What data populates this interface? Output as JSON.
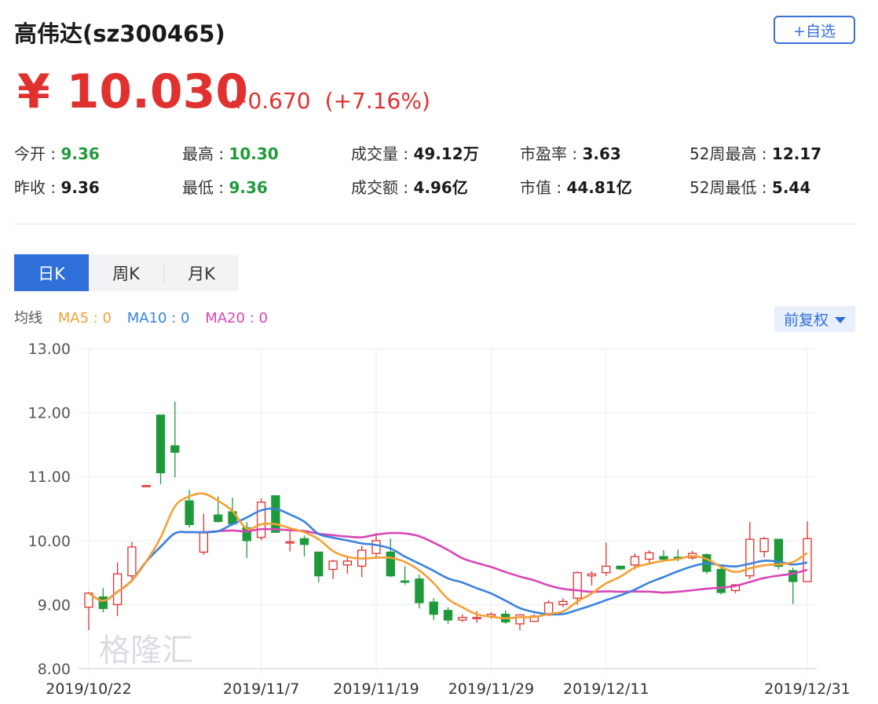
{
  "header": {
    "title": "高伟达(sz300465)",
    "add_label": "+自选",
    "price": "¥ 10.030",
    "change": "+0.670",
    "change_pct": "(+7.16%)"
  },
  "stats": [
    {
      "label": "今开 : ",
      "value": "9.36",
      "color": "green"
    },
    {
      "label": "最高 : ",
      "value": "10.30",
      "color": "green"
    },
    {
      "label": "成交量 : ",
      "value": "49.12万",
      "color": "dark"
    },
    {
      "label": "市盈率 : ",
      "value": "3.63",
      "color": "dark"
    },
    {
      "label": "52周最高 : ",
      "value": "12.17",
      "color": "dark"
    },
    {
      "label": "昨收 : ",
      "value": "9.36",
      "color": "dark"
    },
    {
      "label": "最低 : ",
      "value": "9.36",
      "color": "green"
    },
    {
      "label": "成交额 : ",
      "value": "4.96亿",
      "color": "dark"
    },
    {
      "label": "市值 : ",
      "value": "44.81亿",
      "color": "dark"
    },
    {
      "label": "52周最低 : ",
      "value": "5.44",
      "color": "dark"
    }
  ],
  "tabs": [
    "日K",
    "周K",
    "月K"
  ],
  "ma_legend": {
    "label": "均线",
    "ma5": "MA5 : 0",
    "ma10": "MA10 : 0",
    "ma20": "MA20 : 0"
  },
  "adjust_label": "前复权",
  "watermark": "格隆汇",
  "colors": {
    "up": "#e0312f",
    "down": "#1f9a3a",
    "ma5": "#f5a033",
    "ma10": "#3a82e0",
    "ma20": "#d946b8",
    "accent": "#2f6fd9"
  },
  "chart_data": {
    "type": "candlestick",
    "ylim": [
      8.0,
      13.0
    ],
    "yticks": [
      "13.00",
      "12.00",
      "11.00",
      "10.00",
      "9.00",
      "8.00"
    ],
    "xtick_labels": [
      {
        "index": 0,
        "label": "2019/10/22"
      },
      {
        "index": 12,
        "label": "2019/11/7"
      },
      {
        "index": 20,
        "label": "2019/11/19"
      },
      {
        "index": 28,
        "label": "2019/11/29"
      },
      {
        "index": 36,
        "label": "2019/12/11"
      },
      {
        "index": 50,
        "label": "2019/12/31"
      }
    ],
    "candles": [
      {
        "o": 8.96,
        "h": 9.2,
        "l": 8.6,
        "c": 9.18
      },
      {
        "o": 9.12,
        "h": 9.26,
        "l": 8.88,
        "c": 8.94
      },
      {
        "o": 9.0,
        "h": 9.66,
        "l": 8.82,
        "c": 9.48
      },
      {
        "o": 9.45,
        "h": 9.98,
        "l": 9.4,
        "c": 9.9
      },
      {
        "o": 10.86,
        "h": 10.86,
        "l": 10.86,
        "c": 10.86
      },
      {
        "o": 11.96,
        "h": 11.96,
        "l": 10.88,
        "c": 11.06
      },
      {
        "o": 11.48,
        "h": 12.17,
        "l": 10.99,
        "c": 11.38
      },
      {
        "o": 10.62,
        "h": 10.79,
        "l": 10.2,
        "c": 10.25
      },
      {
        "o": 9.82,
        "h": 10.42,
        "l": 9.78,
        "c": 10.12
      },
      {
        "o": 10.4,
        "h": 10.69,
        "l": 10.28,
        "c": 10.3
      },
      {
        "o": 10.45,
        "h": 10.67,
        "l": 10.23,
        "c": 10.26
      },
      {
        "o": 10.2,
        "h": 10.29,
        "l": 9.73,
        "c": 10.0
      },
      {
        "o": 10.05,
        "h": 10.66,
        "l": 10.01,
        "c": 10.6
      },
      {
        "o": 10.7,
        "h": 10.7,
        "l": 10.13,
        "c": 10.13
      },
      {
        "o": 9.97,
        "h": 10.18,
        "l": 9.83,
        "c": 9.98
      },
      {
        "o": 10.03,
        "h": 10.08,
        "l": 9.75,
        "c": 9.94
      },
      {
        "o": 9.82,
        "h": 9.82,
        "l": 9.35,
        "c": 9.45
      },
      {
        "o": 9.55,
        "h": 9.7,
        "l": 9.4,
        "c": 9.68
      },
      {
        "o": 9.62,
        "h": 9.73,
        "l": 9.48,
        "c": 9.68
      },
      {
        "o": 9.6,
        "h": 9.92,
        "l": 9.43,
        "c": 9.85
      },
      {
        "o": 9.8,
        "h": 10.12,
        "l": 9.74,
        "c": 10.0
      },
      {
        "o": 9.82,
        "h": 10.03,
        "l": 9.43,
        "c": 9.45
      },
      {
        "o": 9.37,
        "h": 9.6,
        "l": 9.31,
        "c": 9.35
      },
      {
        "o": 9.4,
        "h": 9.47,
        "l": 8.94,
        "c": 9.03
      },
      {
        "o": 9.04,
        "h": 9.1,
        "l": 8.76,
        "c": 8.85
      },
      {
        "o": 8.91,
        "h": 8.96,
        "l": 8.7,
        "c": 8.76
      },
      {
        "o": 8.76,
        "h": 8.85,
        "l": 8.73,
        "c": 8.8
      },
      {
        "o": 8.78,
        "h": 8.9,
        "l": 8.72,
        "c": 8.8
      },
      {
        "o": 8.82,
        "h": 8.88,
        "l": 8.78,
        "c": 8.85
      },
      {
        "o": 8.85,
        "h": 8.91,
        "l": 8.7,
        "c": 8.73
      },
      {
        "o": 8.7,
        "h": 8.85,
        "l": 8.6,
        "c": 8.84
      },
      {
        "o": 8.74,
        "h": 8.85,
        "l": 8.73,
        "c": 8.82
      },
      {
        "o": 8.84,
        "h": 9.07,
        "l": 8.82,
        "c": 9.03
      },
      {
        "o": 9.0,
        "h": 9.1,
        "l": 8.96,
        "c": 9.05
      },
      {
        "o": 9.1,
        "h": 9.52,
        "l": 9.0,
        "c": 9.5
      },
      {
        "o": 9.45,
        "h": 9.52,
        "l": 9.3,
        "c": 9.48
      },
      {
        "o": 9.5,
        "h": 9.97,
        "l": 9.45,
        "c": 9.6
      },
      {
        "o": 9.6,
        "h": 9.6,
        "l": 9.54,
        "c": 9.56
      },
      {
        "o": 9.62,
        "h": 9.8,
        "l": 9.55,
        "c": 9.75
      },
      {
        "o": 9.71,
        "h": 9.85,
        "l": 9.65,
        "c": 9.81
      },
      {
        "o": 9.75,
        "h": 9.85,
        "l": 9.67,
        "c": 9.71
      },
      {
        "o": 9.74,
        "h": 9.86,
        "l": 9.68,
        "c": 9.72
      },
      {
        "o": 9.73,
        "h": 9.84,
        "l": 9.7,
        "c": 9.8
      },
      {
        "o": 9.78,
        "h": 9.8,
        "l": 9.48,
        "c": 9.52
      },
      {
        "o": 9.55,
        "h": 9.58,
        "l": 9.16,
        "c": 9.19
      },
      {
        "o": 9.22,
        "h": 9.32,
        "l": 9.18,
        "c": 9.31
      },
      {
        "o": 9.45,
        "h": 10.29,
        "l": 9.4,
        "c": 10.02
      },
      {
        "o": 9.83,
        "h": 10.06,
        "l": 9.74,
        "c": 10.03
      },
      {
        "o": 10.02,
        "h": 10.02,
        "l": 9.55,
        "c": 9.6
      },
      {
        "o": 9.53,
        "h": 9.58,
        "l": 9.01,
        "c": 9.36
      },
      {
        "o": 9.36,
        "h": 10.3,
        "l": 9.36,
        "c": 10.03
      }
    ]
  }
}
